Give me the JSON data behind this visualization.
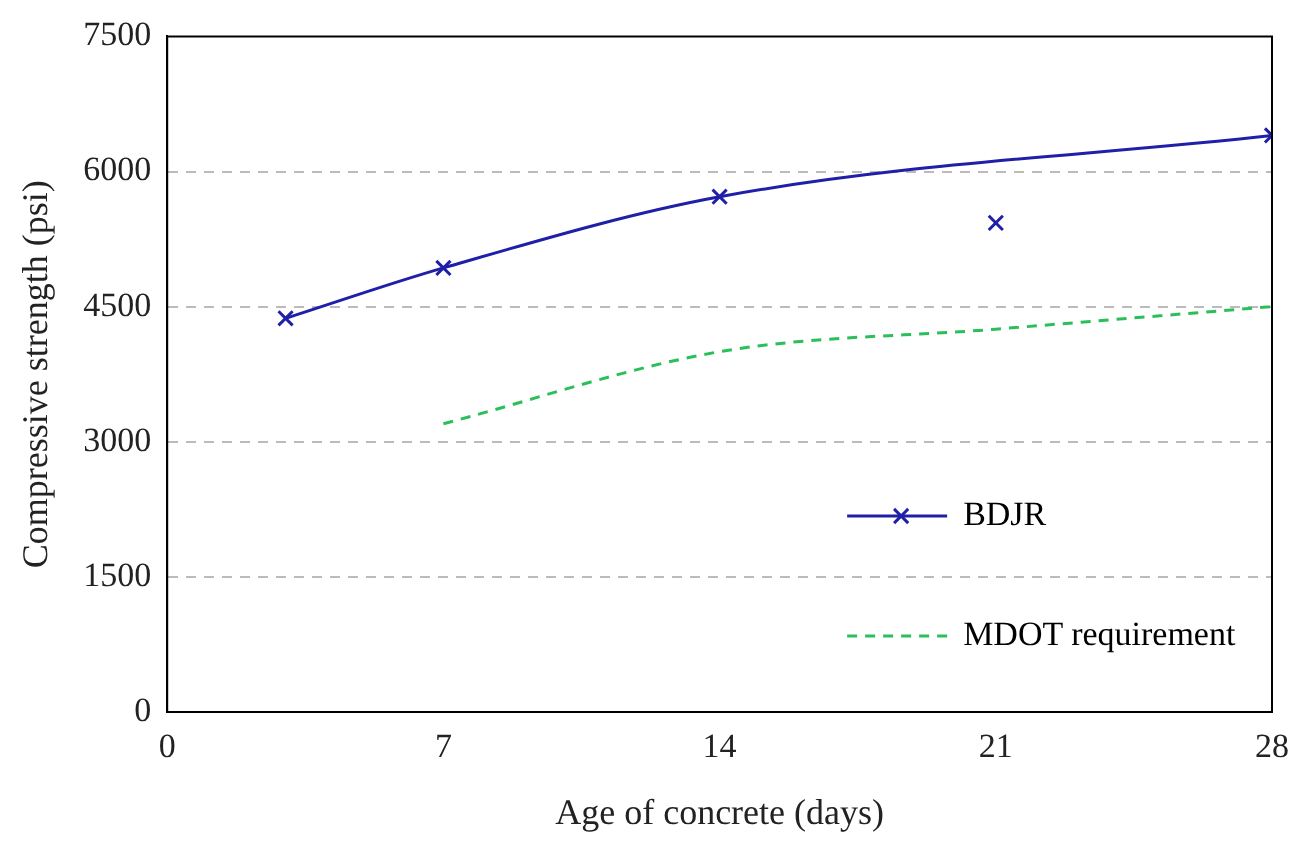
{
  "chart_data": {
    "type": "line",
    "xlabel": "Age of concrete (days)",
    "ylabel": "Compressive strength (psi)",
    "xlim": [
      0,
      28
    ],
    "xticks": [
      0,
      7,
      14,
      21,
      28
    ],
    "ylim": [
      0,
      7500
    ],
    "yticks": [
      0,
      1500,
      3000,
      4500,
      6000,
      7500
    ],
    "grid": "y",
    "legend": "bottom right",
    "series": [
      {
        "name": "BDJR",
        "type": "line",
        "color": "#1f1fa8",
        "marker": "cross",
        "line_style": "solid",
        "x": [
          3,
          7,
          14,
          28
        ],
        "values": [
          4370,
          4930,
          5720,
          6400
        ]
      },
      {
        "type": "scatter",
        "color": "#1f1fa8",
        "marker": "cross",
        "x": [
          21
        ],
        "values": [
          5430
        ]
      },
      {
        "name": "MDOT requirement",
        "type": "line",
        "color": "#2bbf5a",
        "marker": "none",
        "line_style": "dashed",
        "x": [
          7,
          14,
          21,
          28
        ],
        "values": [
          3200,
          4000,
          4250,
          4500
        ]
      }
    ]
  }
}
